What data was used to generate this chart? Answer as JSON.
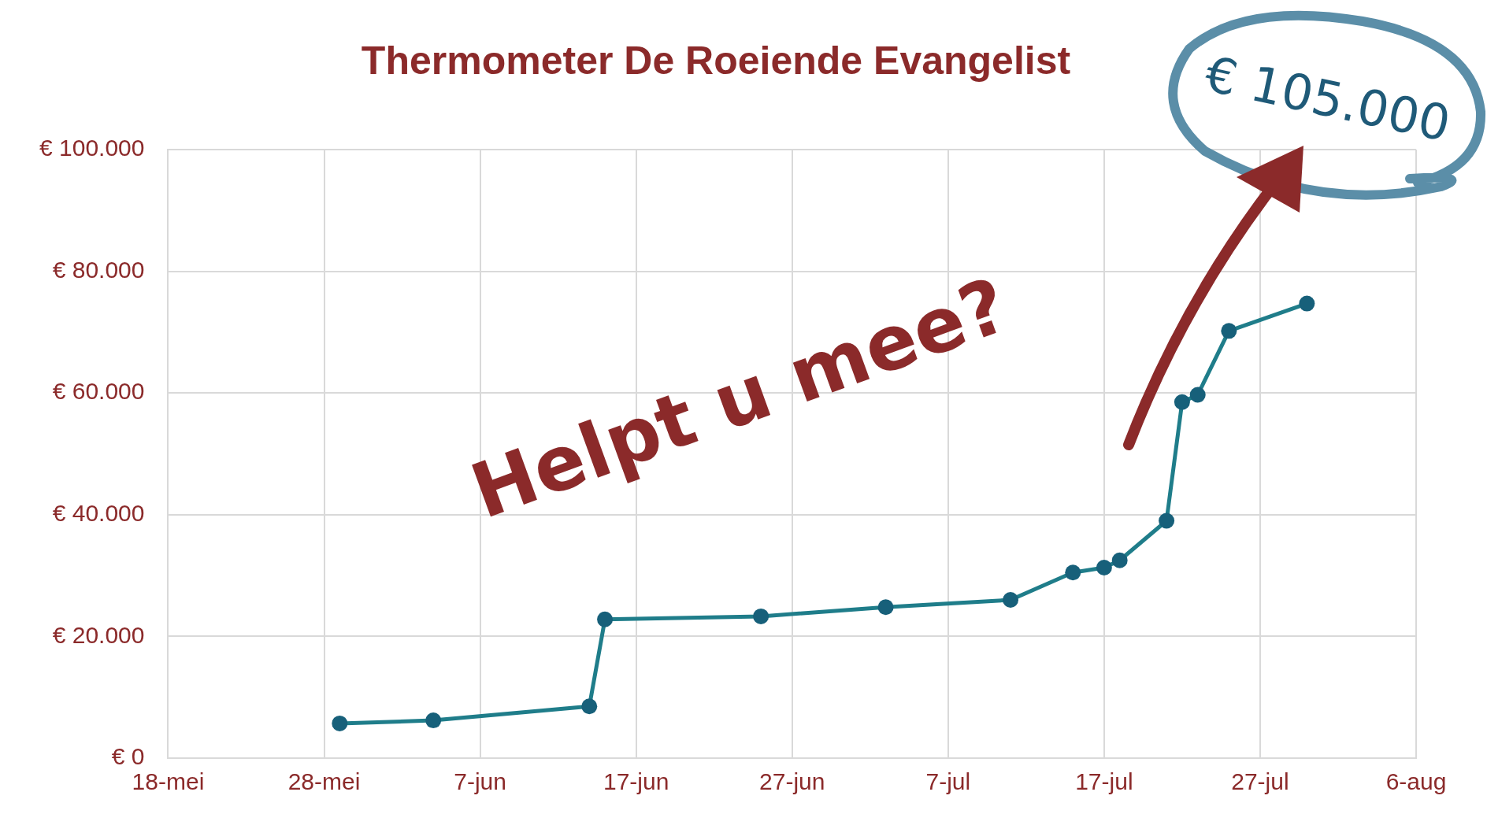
{
  "chart_data": {
    "type": "line",
    "title": "Thermometer De Roeiende Evangelist",
    "x": [
      "--05-29",
      "--06-04",
      "--06-14",
      "--06-15",
      "--06-25",
      "--07-03",
      "--07-11",
      "--07-15",
      "--07-17",
      "--07-18",
      "--07-21",
      "--07-22",
      "--07-23",
      "--07-25",
      "--07-30"
    ],
    "series": [
      {
        "color": "#1f7d8a",
        "values": [
          5700,
          6200,
          8500,
          22800,
          23300,
          24800,
          26000,
          30500,
          31300,
          32500,
          39000,
          58500,
          59700,
          70200,
          74700
        ]
      }
    ],
    "xlim": [
      "--05-18",
      "--08-06"
    ],
    "xticks": [
      {
        "value": "--05-18",
        "label": "18-mei"
      },
      {
        "value": "--05-28",
        "label": "28-mei"
      },
      {
        "value": "--06-07",
        "label": "7-jun"
      },
      {
        "value": "--06-17",
        "label": "17-jun"
      },
      {
        "value": "--06-27",
        "label": "27-jun"
      },
      {
        "value": "--07-07",
        "label": "7-jul"
      },
      {
        "value": "--07-17",
        "label": "17-jul"
      },
      {
        "value": "--07-27",
        "label": "27-jul"
      },
      {
        "value": "--08-06",
        "label": "6-aug"
      }
    ],
    "ylim": [
      0,
      100000
    ],
    "yticks": [
      {
        "value": 0,
        "label": "€ 0"
      },
      {
        "value": 20000,
        "label": "€ 20.000"
      },
      {
        "value": 40000,
        "label": "€ 40.000"
      },
      {
        "value": 60000,
        "label": "€ 60.000"
      },
      {
        "value": 80000,
        "label": "€ 80.000"
      },
      {
        "value": 100000,
        "label": "€ 100.000"
      }
    ],
    "grid": true,
    "marker": "circle",
    "line_style": "solid",
    "legend": false,
    "annotations": [
      "Helpt u mee?",
      "€ 105.000"
    ]
  }
}
